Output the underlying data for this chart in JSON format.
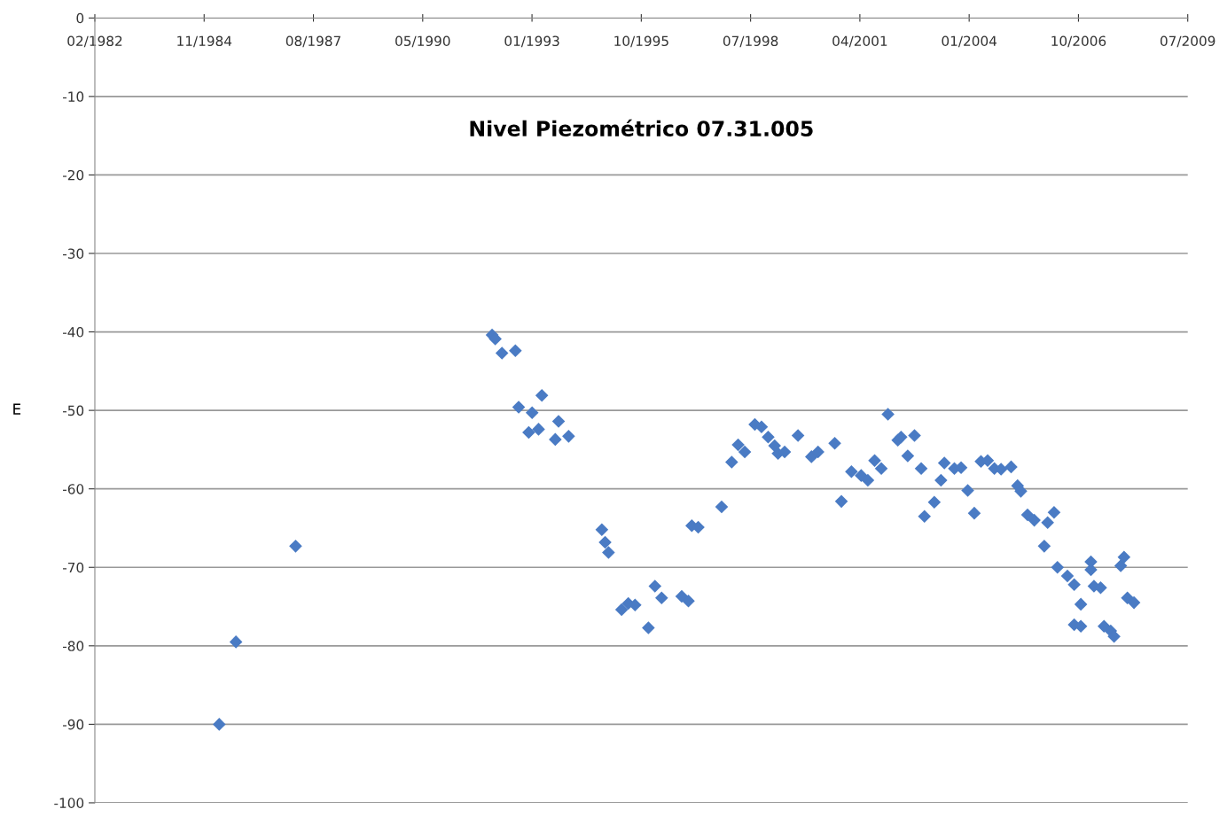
{
  "chart_data": {
    "type": "scatter",
    "title": "Nivel Piezométrico 07.31.005",
    "ylabel": "E",
    "x": [
      "1985-04",
      "1985-09",
      "1987-03",
      "1992-02",
      "1992-03",
      "1992-05",
      "1992-09",
      "1993-05",
      "1992-10",
      "1993-02",
      "1993-01",
      "1993-04",
      "1993-10",
      "1993-09",
      "1994-01",
      "1994-11",
      "1994-12",
      "1995-01",
      "1995-05",
      "1995-07",
      "1995-09",
      "1996-01",
      "1996-03",
      "1996-05",
      "1996-11",
      "1997-01",
      "1997-02",
      "1997-04",
      "1997-11",
      "1998-02",
      "1998-04",
      "1998-06",
      "1998-09",
      "1998-11",
      "1999-01",
      "1999-03",
      "1999-04",
      "1999-06",
      "1999-10",
      "2000-02",
      "2000-04",
      "2000-09",
      "2000-11",
      "2001-02",
      "2001-05",
      "2001-07",
      "2001-09",
      "2001-11",
      "2002-01",
      "2002-04",
      "2002-05",
      "2002-07",
      "2002-09",
      "2002-11",
      "2002-12",
      "2003-03",
      "2003-05",
      "2003-06",
      "2003-09",
      "2003-11",
      "2004-01",
      "2004-03",
      "2004-05",
      "2004-07",
      "2004-09",
      "2004-11",
      "2005-02",
      "2005-04",
      "2005-05",
      "2005-07",
      "2005-09",
      "2005-12",
      "2006-01",
      "2006-03",
      "2006-04",
      "2006-07",
      "2006-09",
      "2006-09",
      "2006-11",
      "2006-11",
      "2007-02",
      "2007-02",
      "2007-03",
      "2007-05",
      "2007-06",
      "2007-08",
      "2007-09",
      "2007-11",
      "2007-12",
      "2008-01",
      "2008-03"
    ],
    "series": [
      {
        "color": "#4a7bc4",
        "values": [
          -90.0,
          -79.5,
          -67.3,
          -40.4,
          -40.9,
          -42.7,
          -42.4,
          -48.1,
          -49.6,
          -50.3,
          -52.8,
          -52.4,
          -51.4,
          -53.7,
          -53.3,
          -65.2,
          -66.8,
          -68.1,
          -75.4,
          -74.6,
          -74.8,
          -77.7,
          -72.4,
          -73.9,
          -73.7,
          -74.3,
          -64.7,
          -64.9,
          -62.3,
          -56.6,
          -54.4,
          -55.3,
          -51.8,
          -52.1,
          -53.4,
          -54.5,
          -55.5,
          -55.3,
          -53.2,
          -55.9,
          -55.3,
          -54.2,
          -61.6,
          -57.8,
          -58.3,
          -58.9,
          -56.4,
          -57.4,
          -50.5,
          -53.8,
          -53.4,
          -55.8,
          -53.2,
          -57.4,
          -63.5,
          -61.7,
          -58.9,
          -56.7,
          -57.4,
          -57.3,
          -60.2,
          -63.1,
          -56.5,
          -56.4,
          -57.4,
          -57.5,
          -57.2,
          -59.6,
          -60.3,
          -63.3,
          -64.0,
          -67.3,
          -64.3,
          -63.0,
          -70.0,
          -71.1,
          -72.2,
          -77.3,
          -77.5,
          -74.7,
          -70.3,
          -69.3,
          -72.4,
          -72.6,
          -77.5,
          -78.1,
          -78.8,
          -69.8,
          -68.7,
          -73.9,
          -74.5
        ]
      }
    ],
    "xlim": [
      "1982-02-18",
      "2009-07-06"
    ],
    "xticks": [
      {
        "value": "1982-02-18",
        "label": "02/1982"
      },
      {
        "value": "1984-11-14",
        "label": "11/1984"
      },
      {
        "value": "1987-08-11",
        "label": "08/1987"
      },
      {
        "value": "1990-05-07",
        "label": "05/1990"
      },
      {
        "value": "1993-01-31",
        "label": "01/1993"
      },
      {
        "value": "1995-10-28",
        "label": "10/1995"
      },
      {
        "value": "1998-07-24",
        "label": "07/1998"
      },
      {
        "value": "2001-04-19",
        "label": "04/2001"
      },
      {
        "value": "2004-01-14",
        "label": "01/2004"
      },
      {
        "value": "2006-10-10",
        "label": "10/2006"
      },
      {
        "value": "2009-07-06",
        "label": "07/2009"
      }
    ],
    "ylim": [
      -100,
      0
    ],
    "yticks": [
      0,
      -10,
      -20,
      -30,
      -40,
      -50,
      -60,
      -70,
      -80,
      -90,
      -100
    ],
    "grid": "y",
    "marker": "diamond",
    "legend": false
  }
}
